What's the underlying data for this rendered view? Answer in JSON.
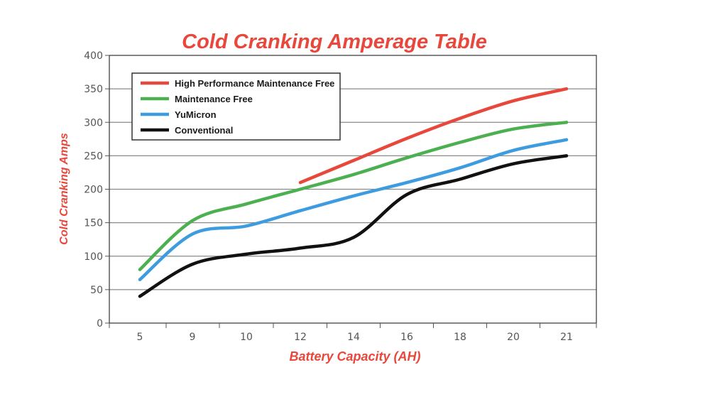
{
  "chart_data": {
    "type": "line",
    "title": "Cold Cranking Amperage Table",
    "xlabel": "Battery Capacity (AH)",
    "ylabel": "Cold Cranking Amps",
    "categories": [
      "5",
      "9",
      "10",
      "12",
      "14",
      "16",
      "18",
      "20",
      "21"
    ],
    "ylim": [
      0,
      400
    ],
    "yticks": [
      0,
      50,
      100,
      150,
      200,
      250,
      300,
      350,
      400
    ],
    "grid": true,
    "legend_position": "top-left",
    "series": [
      {
        "name": "High Performance Maintenance Free",
        "color": "#e8473c",
        "values": [
          null,
          null,
          null,
          210,
          243,
          276,
          306,
          332,
          350
        ]
      },
      {
        "name": "Maintenance Free",
        "color": "#4caf50",
        "values": [
          80,
          153,
          178,
          200,
          222,
          247,
          270,
          290,
          300
        ]
      },
      {
        "name": "YuMicron",
        "color": "#3d9be0",
        "values": [
          65,
          133,
          145,
          168,
          190,
          210,
          232,
          258,
          274
        ]
      },
      {
        "name": "Conventional",
        "color": "#111111",
        "values": [
          40,
          88,
          103,
          112,
          128,
          192,
          215,
          238,
          250
        ]
      }
    ]
  }
}
